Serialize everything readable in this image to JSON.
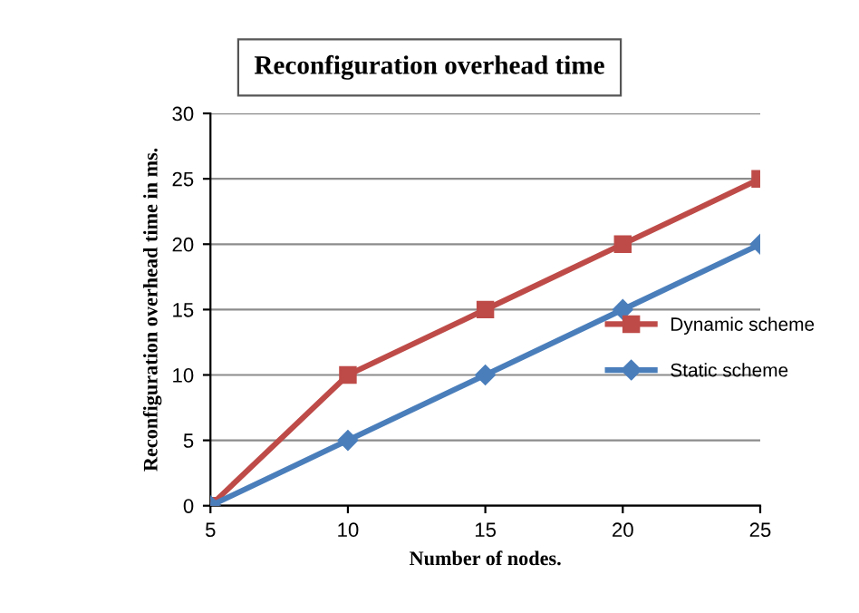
{
  "chart_data": {
    "type": "line",
    "title": "Reconfiguration overhead time",
    "xlabel": "Number of nodes.",
    "ylabel": "Reconfiguration overhead time in ms.",
    "x": [
      5,
      10,
      15,
      20,
      25
    ],
    "series": [
      {
        "name": "Dynamic scheme",
        "color": "#be4b48",
        "marker": "square",
        "values": [
          0,
          10,
          15,
          20,
          25
        ]
      },
      {
        "name": "Static scheme",
        "color": "#4a7ebb",
        "marker": "diamond",
        "values": [
          0,
          5,
          10,
          15,
          20
        ]
      }
    ],
    "xlim": [
      5,
      25
    ],
    "xticks": [
      5,
      10,
      15,
      20,
      25
    ],
    "ylim": [
      0,
      30
    ],
    "yticks": [
      0,
      5,
      10,
      15,
      20,
      25,
      30
    ],
    "grid": "y",
    "legend": "right",
    "line_style": "solid"
  }
}
